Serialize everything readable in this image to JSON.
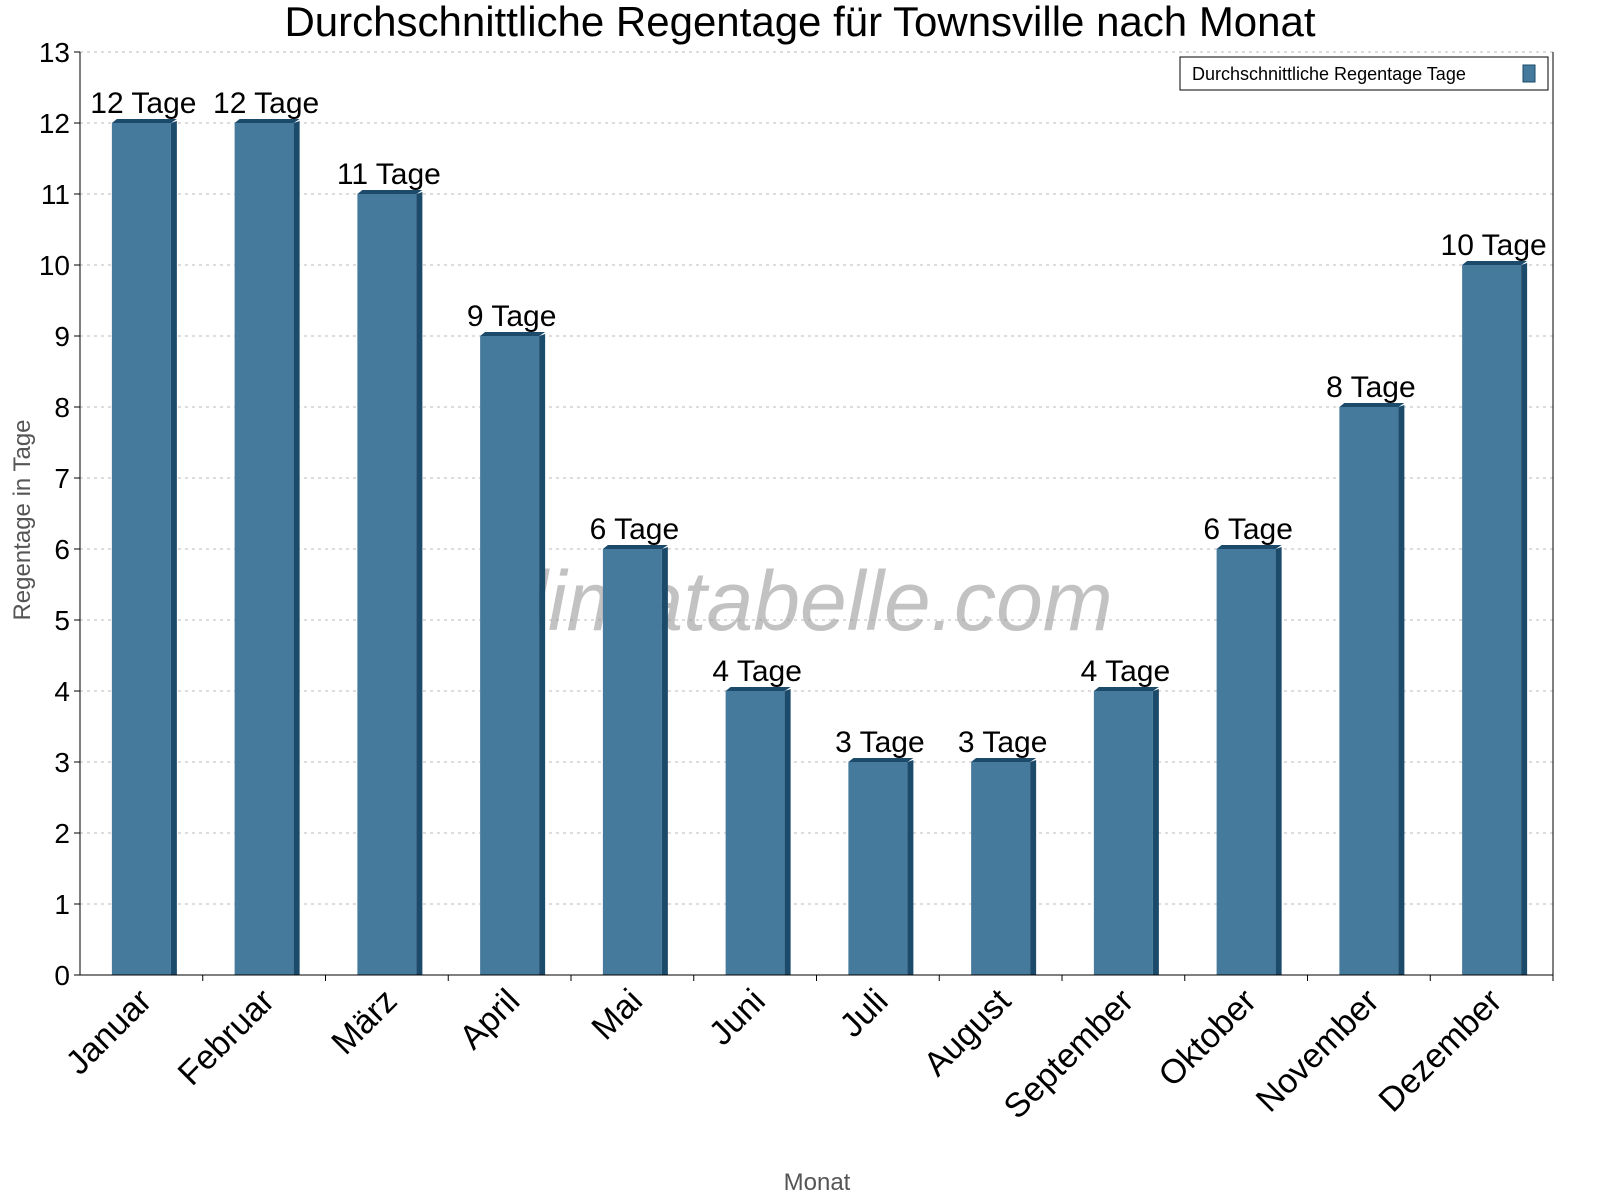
{
  "chart_data": {
    "type": "bar",
    "title": "Durchschnittliche Regentage für Townsville nach Monat",
    "xlabel": "Monat",
    "ylabel": "Regentage in Tage",
    "ylim": [
      0,
      13
    ],
    "yticks": [
      0,
      1,
      2,
      3,
      4,
      5,
      6,
      7,
      8,
      9,
      10,
      11,
      12,
      13
    ],
    "grid": true,
    "legend_position": "top-right",
    "categories": [
      "Januar",
      "Februar",
      "März",
      "April",
      "Mai",
      "Juni",
      "Juli",
      "August",
      "September",
      "Oktober",
      "November",
      "Dezember"
    ],
    "series": [
      {
        "name": "Durchschnittliche Regentage Tage",
        "values": [
          12,
          12,
          11,
          9,
          6,
          4,
          3,
          3,
          4,
          6,
          8,
          10
        ],
        "color": "#457a9c",
        "side_color": "#1b4a6b"
      }
    ],
    "data_labels": [
      "12 Tage",
      "12 Tage",
      "11 Tage",
      "9 Tage",
      "6 Tage",
      "4 Tage",
      "3 Tage",
      "3 Tage",
      "4 Tage",
      "6 Tage",
      "8 Tage",
      "10 Tage"
    ],
    "watermark": "klimatabelle.com"
  }
}
